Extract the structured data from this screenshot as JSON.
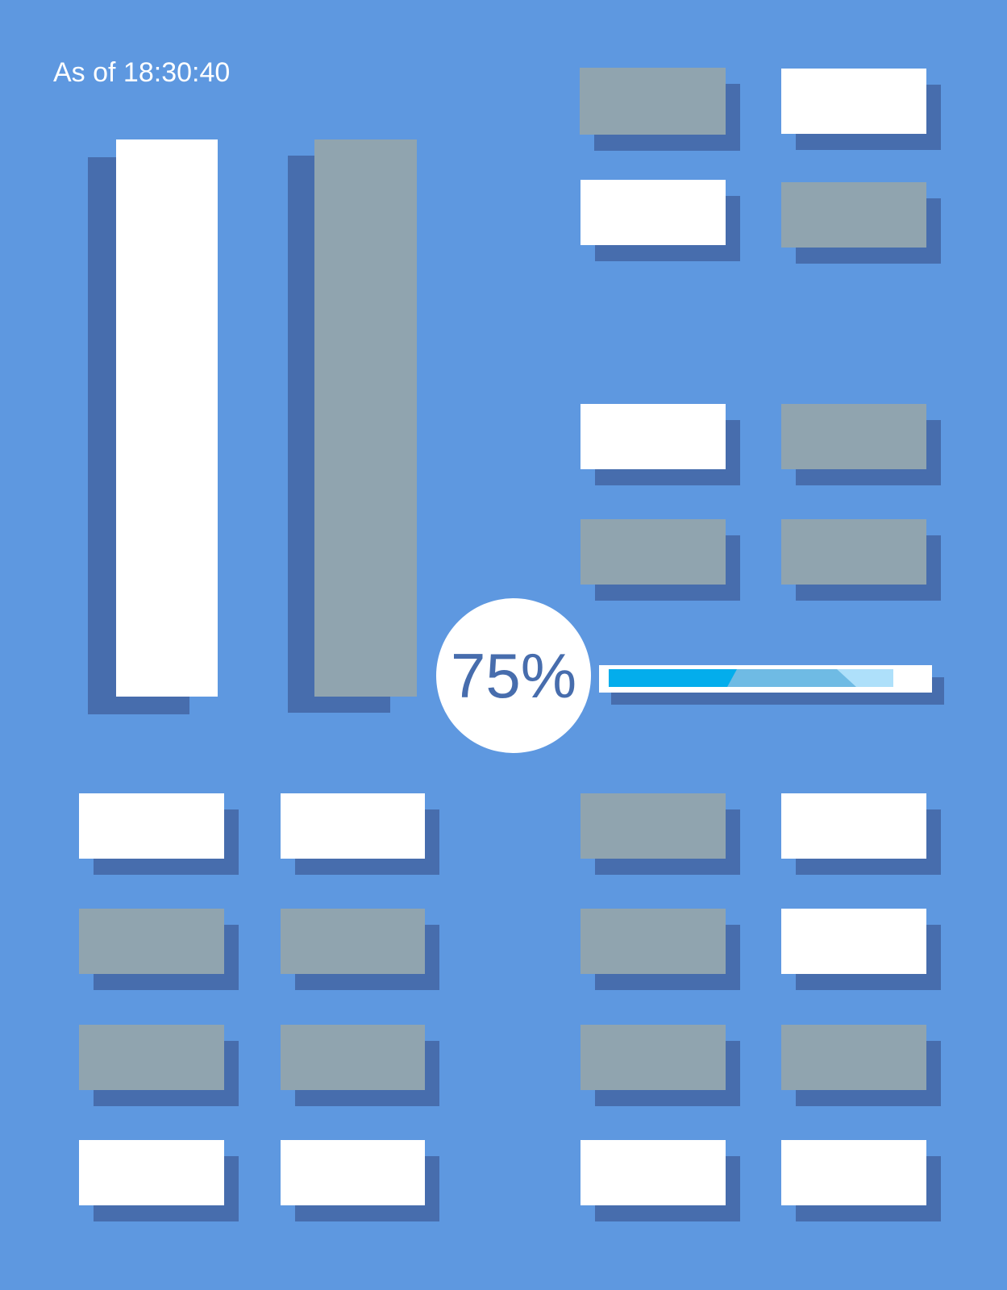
{
  "header": {
    "timestamp": "As of 18:30:40"
  },
  "progress": {
    "percent_label": "75%",
    "value": 0.75
  },
  "colors": {
    "background": "#5e98e0",
    "tile_white": "#ffffff",
    "tile_gray": "#90a4af",
    "shadow": "#476dad",
    "progress_fill": "#03adec",
    "progress_mid": "#6fbbe4",
    "progress_light": "#aee0fa",
    "accent_text": "#476dad"
  }
}
